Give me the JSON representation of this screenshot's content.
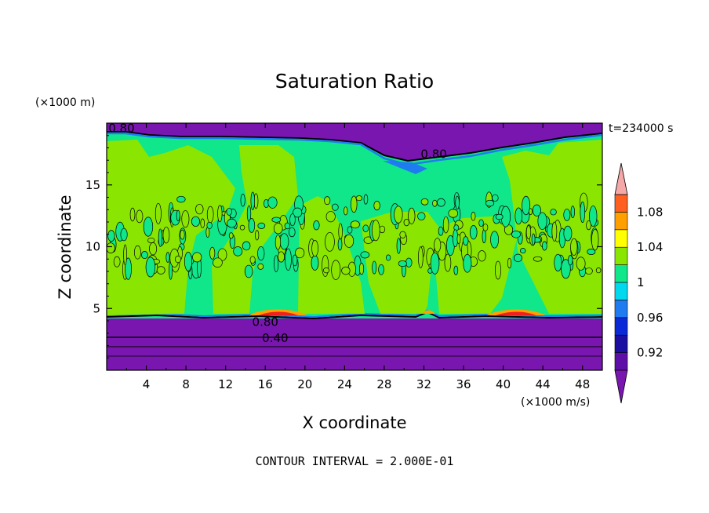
{
  "chart_data": {
    "type": "heatmap",
    "title": "Saturation Ratio",
    "xlabel": "X coordinate",
    "ylabel": "Z coordinate",
    "x_units": "(×1000 m/s)",
    "y_units": "(×1000 m)",
    "time_label": "t=234000 s",
    "footnote": "CONTOUR INTERVAL = 2.000E-01",
    "xlim": [
      0,
      50
    ],
    "ylim": [
      0,
      20
    ],
    "x_ticks": [
      4,
      8,
      12,
      16,
      20,
      24,
      28,
      32,
      36,
      40,
      44,
      48
    ],
    "y_ticks": [
      5,
      10,
      15
    ],
    "contour_labels": [
      {
        "text": "0.80",
        "x": 1.5,
        "z": 19.6
      },
      {
        "text": "0.80",
        "x": 33,
        "z": 17.5
      },
      {
        "text": "0.80",
        "x": 16,
        "z": 3.9
      },
      {
        "text": "0.40",
        "x": 17,
        "z": 2.6
      }
    ],
    "colorbar": {
      "levels": [
        0.9,
        0.92,
        0.94,
        0.96,
        0.98,
        1.0,
        1.02,
        1.04,
        1.06,
        1.08,
        1.1
      ],
      "tick_labels": [
        "0.92",
        "0.96",
        "1",
        "1.04",
        "1.08"
      ],
      "tick_values": [
        0.92,
        0.96,
        1.0,
        1.04,
        1.08
      ],
      "colors": [
        "#5e0fa8",
        "#1a0fa0",
        "#0a2ad8",
        "#1f7cf0",
        "#00d8f0",
        "#10e68a",
        "#8ae600",
        "#ffff00",
        "#ffa000",
        "#ff6020",
        "#f02020"
      ],
      "under_color": "#7a16b0",
      "over_color": "#f5a8a8"
    },
    "regions": [
      {
        "label": "upper dry layer",
        "z_range": [
          19.0,
          20
        ],
        "value": 0.8
      },
      {
        "label": "lower dry layer",
        "z_range": [
          0,
          4.3
        ],
        "value": 0.4
      },
      {
        "label": "cloud layer",
        "z_range": [
          4.3,
          19.0
        ],
        "value": 1.0
      },
      {
        "label": "supersaturated patch",
        "x_range": [
          15,
          20
        ],
        "z_range": [
          4.4,
          4.7
        ],
        "value": 1.06
      },
      {
        "label": "supersaturated patch",
        "x_range": [
          39,
          44
        ],
        "z_range": [
          4.4,
          4.7
        ],
        "value": 1.06
      }
    ]
  }
}
